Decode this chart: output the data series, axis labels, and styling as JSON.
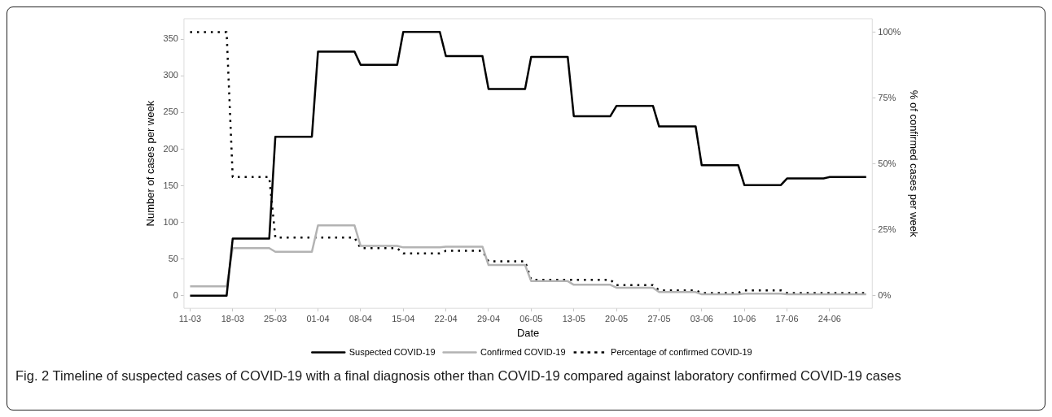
{
  "chart_data": {
    "type": "line",
    "xlabel": "Date",
    "ylabel": "Number of cases per week",
    "y2label": "% of confirmed cases per week",
    "x": [
      "--03-11",
      "--03-17",
      "--03-18",
      "--03-24",
      "--03-25",
      "--03-31",
      "--04-01",
      "--04-07",
      "--04-08",
      "--04-14",
      "--04-15",
      "--04-21",
      "--04-22",
      "--04-28",
      "--04-29",
      "--05-05",
      "--05-06",
      "--05-12",
      "--05-13",
      "--05-19",
      "--05-20",
      "--05-26",
      "--05-27",
      "--06-02",
      "--06-03",
      "--06-09",
      "--06-10",
      "--06-16",
      "--06-17",
      "--06-23",
      "--06-24",
      "--06-30"
    ],
    "series": [
      {
        "name": "Suspected COVID-19",
        "color": "#000000",
        "values": [
          0,
          0,
          78,
          78,
          217,
          217,
          333,
          333,
          315,
          315,
          360,
          360,
          327,
          327,
          282,
          282,
          326,
          326,
          245,
          245,
          259,
          259,
          231,
          231,
          178,
          178,
          151,
          151,
          160,
          160,
          162,
          162
        ]
      },
      {
        "name": "Confirmed COVID-19",
        "color": "#b3b3b3",
        "values": [
          13,
          13,
          65,
          65,
          60,
          60,
          96,
          96,
          68,
          68,
          66,
          66,
          67,
          67,
          42,
          42,
          20,
          20,
          15,
          15,
          11,
          11,
          5,
          5,
          2,
          2,
          3,
          3,
          2,
          2,
          2,
          2
        ]
      },
      {
        "name": "Percentage of confirmed COVID-19",
        "color": "#000000",
        "axis": "y2",
        "line_style": "dotted",
        "values": [
          100,
          100,
          45,
          45,
          22,
          22,
          22,
          22,
          18,
          18,
          16,
          16,
          17,
          17,
          13,
          13,
          6,
          6,
          6,
          6,
          4,
          4,
          2,
          2,
          1,
          1,
          2,
          2,
          1,
          1,
          1,
          1
        ]
      }
    ],
    "xlim": [
      "--03-10",
      "--07-01"
    ],
    "xticks": [
      {
        "value": "--03-11",
        "label": "11-03"
      },
      {
        "value": "--03-18",
        "label": "18-03"
      },
      {
        "value": "--03-25",
        "label": "25-03"
      },
      {
        "value": "--04-01",
        "label": "01-04"
      },
      {
        "value": "--04-08",
        "label": "08-04"
      },
      {
        "value": "--04-15",
        "label": "15-04"
      },
      {
        "value": "--04-22",
        "label": "22-04"
      },
      {
        "value": "--04-29",
        "label": "29-04"
      },
      {
        "value": "--05-06",
        "label": "06-05"
      },
      {
        "value": "--05-13",
        "label": "13-05"
      },
      {
        "value": "--05-20",
        "label": "20-05"
      },
      {
        "value": "--05-27",
        "label": "27-05"
      },
      {
        "value": "--06-03",
        "label": "03-06"
      },
      {
        "value": "--06-10",
        "label": "10-06"
      },
      {
        "value": "--06-17",
        "label": "17-06"
      },
      {
        "value": "--06-24",
        "label": "24-06"
      }
    ],
    "ylim": [
      -17,
      378
    ],
    "yticks": [
      0,
      50,
      100,
      150,
      200,
      250,
      300,
      350
    ],
    "y2lim": [
      -4.8,
      105.1
    ],
    "y2ticks": [
      {
        "value": 0,
        "label": "0%"
      },
      {
        "value": 25,
        "label": "25%"
      },
      {
        "value": 50,
        "label": "50%"
      },
      {
        "value": 75,
        "label": "75%"
      },
      {
        "value": 100,
        "label": "100%"
      }
    ],
    "grid": false,
    "legend": "bottom",
    "marker": "none",
    "line_style": "solid",
    "annotations": [
      "Fig. 2 Timeline of suspected cases of COVID-19 with a final diagnosis other than COVID-19 compared against laboratory confirmed COVID-19 cases"
    ]
  }
}
